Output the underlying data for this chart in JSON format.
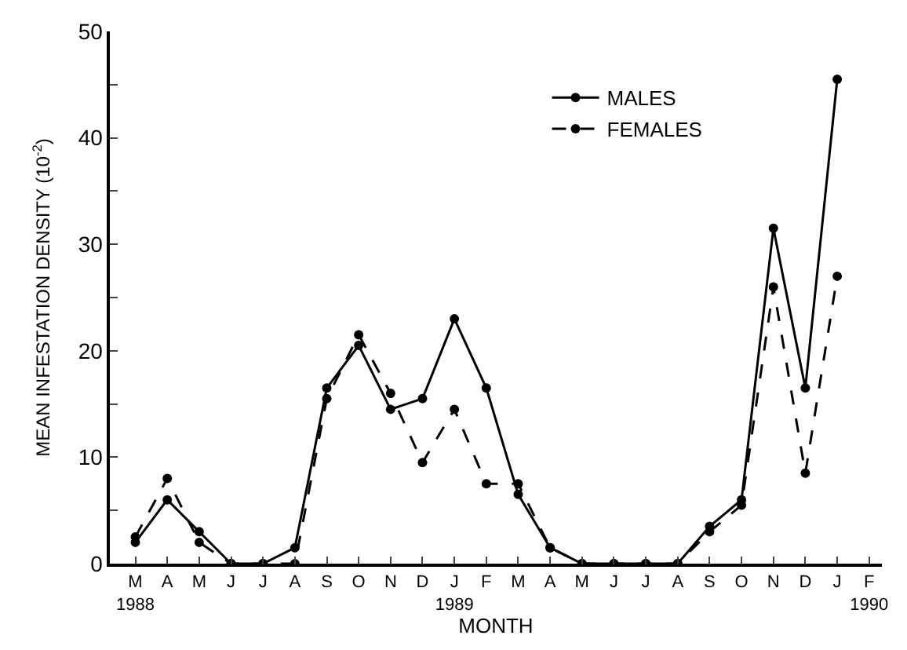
{
  "chart_data": {
    "type": "line",
    "xlabel": "MONTH",
    "ylabel": "MEAN INFESTATION DENSITY (10$^{-2}$)",
    "categories": [
      "M\n1988",
      "A",
      "M",
      "J",
      "J",
      "A",
      "S",
      "O",
      "N",
      "D",
      "J\n1989",
      "F",
      "M",
      "A",
      "M",
      "J",
      "J",
      "A",
      "S",
      "O",
      "N",
      "D",
      "J",
      "F\n1990"
    ],
    "series": [
      {
        "name": "MALES",
        "color": "#000000",
        "line_style": "solid",
        "values": [
          2,
          6,
          3,
          0,
          0,
          1.5,
          16.5,
          20.5,
          14.5,
          15.5,
          23,
          16.5,
          6.5,
          1.5,
          0,
          0,
          0,
          0,
          3.5,
          6,
          31.5,
          16.5,
          45.5,
          null
        ]
      },
      {
        "name": "FEMALES",
        "color": "#000000",
        "line_style": "dashed",
        "values": [
          2.5,
          8,
          2,
          0,
          0,
          0,
          15.5,
          21.5,
          16,
          9.5,
          14.5,
          7.5,
          7.5,
          1.5,
          0,
          0,
          0,
          0,
          3,
          5.5,
          26,
          8.5,
          27,
          null
        ]
      }
    ],
    "ylim": [
      0,
      50
    ],
    "yticks": [
      0,
      {
        "value": 5,
        "label": null
      },
      10,
      {
        "value": 15,
        "label": null
      },
      20,
      {
        "value": 25,
        "label": null
      },
      30,
      {
        "value": 35,
        "label": null
      },
      40,
      {
        "value": 45,
        "label": null
      },
      50
    ],
    "legend": "top right",
    "marker": "circle"
  }
}
